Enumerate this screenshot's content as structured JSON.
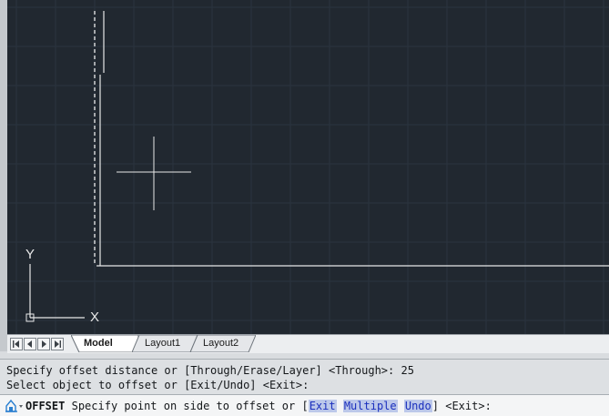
{
  "viewport": {
    "background": "#212830",
    "grid_color": "#2b343f",
    "line_color": "#e8e8e8",
    "ucs": {
      "y_label": "Y",
      "x_label": "X"
    }
  },
  "layout_tabs": {
    "nav_icons": [
      "first-tab-icon",
      "previous-tab-icon",
      "next-tab-icon",
      "last-tab-icon"
    ],
    "tabs": [
      {
        "label": "Model",
        "active": true
      },
      {
        "label": "Layout1",
        "active": false
      },
      {
        "label": "Layout2",
        "active": false
      }
    ]
  },
  "command": {
    "history": [
      "Specify offset distance or [Through/Erase/Layer] <Through>: 25",
      "Select object to offset or [Exit/Undo] <Exit>:"
    ],
    "prompt_icon": "command-prompt-icon",
    "current_command": "OFFSET",
    "prompt_prefix": "Specify point on side to offset or [",
    "options": [
      "Exit",
      "Multiple",
      "Undo"
    ],
    "prompt_suffix": "] <Exit>:"
  }
}
